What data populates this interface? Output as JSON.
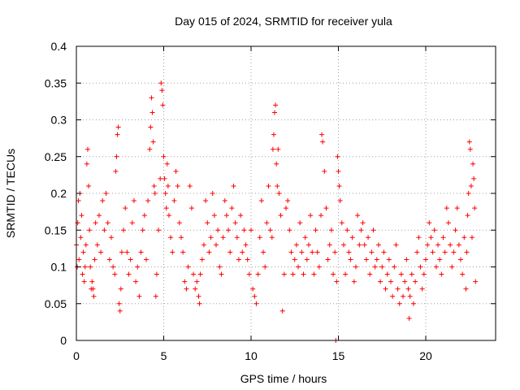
{
  "chart_data": {
    "type": "scatter",
    "title": "Day 015 of 2024, SRMTID for receiver yula",
    "xlabel": "GPS time / hours",
    "ylabel": "SRMTID / TECUs",
    "xlim": [
      0,
      24
    ],
    "ylim": [
      0,
      0.4
    ],
    "grid": true,
    "marker": "+",
    "color": "#ff0000",
    "xticks": [
      0,
      5,
      10,
      15,
      20
    ],
    "xtick_labels": [
      "0",
      "5",
      "10",
      "15",
      "20"
    ],
    "yticks": [
      0,
      0.05,
      0.1,
      0.15,
      0.2,
      0.25,
      0.3,
      0.35,
      0.4
    ],
    "ytick_labels": [
      "0",
      "0.05",
      "0.1",
      "0.15",
      "0.2",
      "0.25",
      "0.3",
      "0.35",
      "0.4"
    ],
    "series": [
      {
        "name": "SRMTID",
        "points": [
          [
            0.0,
            0.13
          ],
          [
            0.05,
            0.1
          ],
          [
            0.08,
            0.16
          ],
          [
            0.12,
            0.19
          ],
          [
            0.15,
            0.11
          ],
          [
            0.2,
            0.2
          ],
          [
            0.25,
            0.14
          ],
          [
            0.3,
            0.17
          ],
          [
            0.35,
            0.09
          ],
          [
            0.4,
            0.12
          ],
          [
            0.45,
            0.08
          ],
          [
            0.5,
            0.1
          ],
          [
            0.55,
            0.13
          ],
          [
            0.6,
            0.24
          ],
          [
            0.65,
            0.26
          ],
          [
            0.7,
            0.21
          ],
          [
            0.75,
            0.15
          ],
          [
            0.8,
            0.1
          ],
          [
            0.85,
            0.07
          ],
          [
            0.9,
            0.08
          ],
          [
            0.95,
            0.07
          ],
          [
            1.0,
            0.06
          ],
          [
            1.05,
            0.11
          ],
          [
            1.1,
            0.16
          ],
          [
            1.2,
            0.13
          ],
          [
            1.3,
            0.17
          ],
          [
            1.4,
            0.12
          ],
          [
            1.5,
            0.19
          ],
          [
            1.6,
            0.15
          ],
          [
            1.7,
            0.2
          ],
          [
            1.8,
            0.16
          ],
          [
            1.9,
            0.11
          ],
          [
            2.0,
            0.14
          ],
          [
            2.1,
            0.1
          ],
          [
            2.2,
            0.09
          ],
          [
            2.25,
            0.23
          ],
          [
            2.3,
            0.25
          ],
          [
            2.35,
            0.28
          ],
          [
            2.4,
            0.29
          ],
          [
            2.45,
            0.05
          ],
          [
            2.5,
            0.04
          ],
          [
            2.55,
            0.07
          ],
          [
            2.6,
            0.12
          ],
          [
            2.7,
            0.15
          ],
          [
            2.8,
            0.18
          ],
          [
            2.9,
            0.12
          ],
          [
            3.0,
            0.09
          ],
          [
            3.1,
            0.11
          ],
          [
            3.2,
            0.16
          ],
          [
            3.3,
            0.19
          ],
          [
            3.4,
            0.08
          ],
          [
            3.5,
            0.1
          ],
          [
            3.6,
            0.06
          ],
          [
            3.7,
            0.12
          ],
          [
            3.8,
            0.15
          ],
          [
            3.9,
            0.17
          ],
          [
            4.0,
            0.11
          ],
          [
            4.1,
            0.19
          ],
          [
            4.2,
            0.26
          ],
          [
            4.25,
            0.29
          ],
          [
            4.3,
            0.33
          ],
          [
            4.35,
            0.31
          ],
          [
            4.4,
            0.27
          ],
          [
            4.45,
            0.21
          ],
          [
            4.5,
            0.2
          ],
          [
            4.55,
            0.06
          ],
          [
            4.6,
            0.09
          ],
          [
            4.7,
            0.15
          ],
          [
            4.8,
            0.22
          ],
          [
            4.85,
            0.35
          ],
          [
            4.9,
            0.34
          ],
          [
            4.95,
            0.32
          ],
          [
            5.0,
            0.25
          ],
          [
            5.05,
            0.22
          ],
          [
            5.1,
            0.2
          ],
          [
            5.15,
            0.18
          ],
          [
            5.2,
            0.24
          ],
          [
            5.25,
            0.21
          ],
          [
            5.3,
            0.17
          ],
          [
            5.4,
            0.14
          ],
          [
            5.5,
            0.12
          ],
          [
            5.6,
            0.19
          ],
          [
            5.7,
            0.23
          ],
          [
            5.8,
            0.21
          ],
          [
            5.9,
            0.16
          ],
          [
            6.0,
            0.14
          ],
          [
            6.1,
            0.12
          ],
          [
            6.2,
            0.08
          ],
          [
            6.3,
            0.07
          ],
          [
            6.4,
            0.1
          ],
          [
            6.5,
            0.21
          ],
          [
            6.6,
            0.18
          ],
          [
            6.7,
            0.09
          ],
          [
            6.8,
            0.07
          ],
          [
            6.9,
            0.08
          ],
          [
            7.0,
            0.06
          ],
          [
            7.05,
            0.05
          ],
          [
            7.1,
            0.09
          ],
          [
            7.2,
            0.11
          ],
          [
            7.3,
            0.13
          ],
          [
            7.4,
            0.19
          ],
          [
            7.5,
            0.16
          ],
          [
            7.6,
            0.12
          ],
          [
            7.7,
            0.14
          ],
          [
            7.8,
            0.2
          ],
          [
            7.9,
            0.17
          ],
          [
            8.0,
            0.13
          ],
          [
            8.1,
            0.15
          ],
          [
            8.2,
            0.1
          ],
          [
            8.3,
            0.09
          ],
          [
            8.4,
            0.14
          ],
          [
            8.5,
            0.19
          ],
          [
            8.6,
            0.17
          ],
          [
            8.7,
            0.15
          ],
          [
            8.8,
            0.12
          ],
          [
            8.9,
            0.18
          ],
          [
            9.0,
            0.21
          ],
          [
            9.1,
            0.16
          ],
          [
            9.2,
            0.14
          ],
          [
            9.3,
            0.11
          ],
          [
            9.4,
            0.17
          ],
          [
            9.5,
            0.12
          ],
          [
            9.6,
            0.15
          ],
          [
            9.7,
            0.13
          ],
          [
            9.8,
            0.11
          ],
          [
            9.9,
            0.09
          ],
          [
            10.0,
            0.15
          ],
          [
            10.1,
            0.07
          ],
          [
            10.2,
            0.06
          ],
          [
            10.3,
            0.05
          ],
          [
            10.4,
            0.09
          ],
          [
            10.5,
            0.14
          ],
          [
            10.6,
            0.19
          ],
          [
            10.7,
            0.12
          ],
          [
            10.8,
            0.1
          ],
          [
            10.9,
            0.16
          ],
          [
            11.0,
            0.21
          ],
          [
            11.1,
            0.15
          ],
          [
            11.2,
            0.14
          ],
          [
            11.25,
            0.26
          ],
          [
            11.3,
            0.28
          ],
          [
            11.35,
            0.31
          ],
          [
            11.4,
            0.32
          ],
          [
            11.45,
            0.24
          ],
          [
            11.5,
            0.21
          ],
          [
            11.55,
            0.26
          ],
          [
            11.6,
            0.2
          ],
          [
            11.7,
            0.17
          ],
          [
            11.8,
            0.04
          ],
          [
            11.9,
            0.09
          ],
          [
            12.0,
            0.18
          ],
          [
            12.1,
            0.19
          ],
          [
            12.2,
            0.15
          ],
          [
            12.3,
            0.12
          ],
          [
            12.4,
            0.09
          ],
          [
            12.5,
            0.11
          ],
          [
            12.6,
            0.13
          ],
          [
            12.7,
            0.1
          ],
          [
            12.8,
            0.16
          ],
          [
            12.9,
            0.12
          ],
          [
            13.0,
            0.09
          ],
          [
            13.1,
            0.14
          ],
          [
            13.2,
            0.11
          ],
          [
            13.3,
            0.13
          ],
          [
            13.4,
            0.17
          ],
          [
            13.5,
            0.12
          ],
          [
            13.6,
            0.09
          ],
          [
            13.7,
            0.15
          ],
          [
            13.8,
            0.12
          ],
          [
            13.9,
            0.1
          ],
          [
            14.0,
            0.17
          ],
          [
            14.05,
            0.28
          ],
          [
            14.1,
            0.27
          ],
          [
            14.2,
            0.23
          ],
          [
            14.3,
            0.18
          ],
          [
            14.4,
            0.11
          ],
          [
            14.5,
            0.13
          ],
          [
            14.6,
            0.15
          ],
          [
            14.7,
            0.09
          ],
          [
            14.8,
            0.12
          ],
          [
            14.85,
            0.0
          ],
          [
            14.9,
            0.08
          ],
          [
            14.95,
            0.25
          ],
          [
            15.0,
            0.23
          ],
          [
            15.05,
            0.21
          ],
          [
            15.1,
            0.19
          ],
          [
            15.2,
            0.16
          ],
          [
            15.3,
            0.13
          ],
          [
            15.4,
            0.09
          ],
          [
            15.5,
            0.15
          ],
          [
            15.6,
            0.12
          ],
          [
            15.7,
            0.11
          ],
          [
            15.8,
            0.14
          ],
          [
            15.9,
            0.08
          ],
          [
            16.0,
            0.1
          ],
          [
            16.1,
            0.17
          ],
          [
            16.2,
            0.13
          ],
          [
            16.3,
            0.15
          ],
          [
            16.4,
            0.16
          ],
          [
            16.5,
            0.13
          ],
          [
            16.6,
            0.11
          ],
          [
            16.7,
            0.14
          ],
          [
            16.8,
            0.09
          ],
          [
            16.9,
            0.12
          ],
          [
            17.0,
            0.15
          ],
          [
            17.1,
            0.1
          ],
          [
            17.2,
            0.11
          ],
          [
            17.3,
            0.13
          ],
          [
            17.4,
            0.08
          ],
          [
            17.5,
            0.1
          ],
          [
            17.6,
            0.12
          ],
          [
            17.7,
            0.07
          ],
          [
            17.8,
            0.09
          ],
          [
            17.9,
            0.11
          ],
          [
            18.0,
            0.08
          ],
          [
            18.1,
            0.06
          ],
          [
            18.2,
            0.1
          ],
          [
            18.3,
            0.13
          ],
          [
            18.4,
            0.07
          ],
          [
            18.5,
            0.05
          ],
          [
            18.6,
            0.09
          ],
          [
            18.7,
            0.06
          ],
          [
            18.8,
            0.08
          ],
          [
            18.9,
            0.11
          ],
          [
            19.0,
            0.07
          ],
          [
            19.05,
            0.03
          ],
          [
            19.1,
            0.06
          ],
          [
            19.2,
            0.09
          ],
          [
            19.3,
            0.05
          ],
          [
            19.4,
            0.08
          ],
          [
            19.5,
            0.12
          ],
          [
            19.6,
            0.14
          ],
          [
            19.7,
            0.1
          ],
          [
            19.8,
            0.07
          ],
          [
            19.9,
            0.09
          ],
          [
            20.0,
            0.11
          ],
          [
            20.1,
            0.13
          ],
          [
            20.2,
            0.16
          ],
          [
            20.3,
            0.14
          ],
          [
            20.4,
            0.12
          ],
          [
            20.5,
            0.15
          ],
          [
            20.6,
            0.1
          ],
          [
            20.7,
            0.13
          ],
          [
            20.8,
            0.11
          ],
          [
            20.9,
            0.09
          ],
          [
            21.0,
            0.14
          ],
          [
            21.1,
            0.12
          ],
          [
            21.2,
            0.18
          ],
          [
            21.3,
            0.16
          ],
          [
            21.4,
            0.13
          ],
          [
            21.5,
            0.1
          ],
          [
            21.6,
            0.12
          ],
          [
            21.7,
            0.15
          ],
          [
            21.8,
            0.18
          ],
          [
            21.9,
            0.13
          ],
          [
            22.0,
            0.11
          ],
          [
            22.1,
            0.09
          ],
          [
            22.2,
            0.14
          ],
          [
            22.3,
            0.07
          ],
          [
            22.35,
            0.12
          ],
          [
            22.4,
            0.17
          ],
          [
            22.45,
            0.2
          ],
          [
            22.5,
            0.27
          ],
          [
            22.55,
            0.26
          ],
          [
            22.6,
            0.21
          ],
          [
            22.65,
            0.14
          ],
          [
            22.7,
            0.24
          ],
          [
            22.75,
            0.22
          ],
          [
            22.8,
            0.18
          ],
          [
            22.85,
            0.08
          ]
        ]
      }
    ]
  }
}
